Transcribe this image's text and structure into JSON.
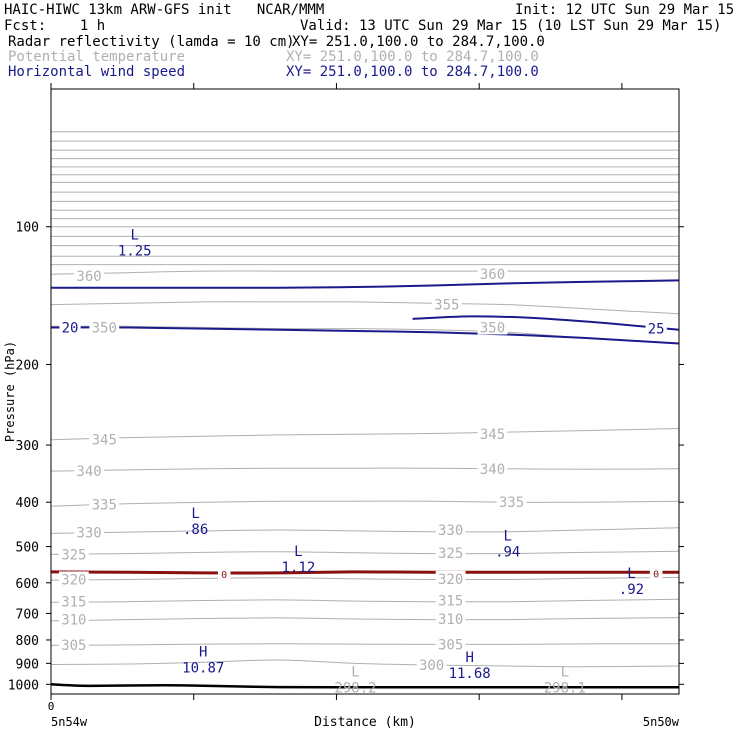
{
  "header": {
    "model": "HAIC-HIWC 13km ARW-GFS init   NCAR/MMM",
    "init": "Init: 12 UTC Sun 29 Mar 15",
    "fcst": "Fcst:    1 h",
    "valid": "Valid: 13 UTC Sun 29 Mar 15 (10 LST Sun 29 Mar 15)",
    "fields": [
      {
        "label": "Radar reflectivity (lamda = 10 cm)",
        "xy": "XY= 251.0,100.0 to 284.7,100.0",
        "color": "#000000"
      },
      {
        "label": "Potential temperature",
        "xy": "XY= 251.0,100.0 to 284.7,100.0",
        "color": "#b0b0b0"
      },
      {
        "label": "Horizontal wind speed",
        "xy": "XY= 251.0,100.0 to 284.7,100.0",
        "color": "#1a1a8c"
      }
    ]
  },
  "chart_data": {
    "type": "line",
    "xlabel": "Distance (km)",
    "ylabel": "Pressure (hPa)",
    "xlim": [
      0,
      330
    ],
    "ylim": [
      1050,
      50
    ],
    "yscale": "log",
    "x_tick_values": [
      0,
      75,
      150,
      225,
      300
    ],
    "x_tick_labels": [
      "0"
    ],
    "x_end_labels": {
      "left": "5n54w",
      "right": "5n50w"
    },
    "y_ticks": [
      100,
      200,
      300,
      400,
      500,
      600,
      700,
      800,
      900,
      1000
    ],
    "grid": false,
    "colors": {
      "theta": "#b0b0b0",
      "wind": "#1a1a8c",
      "reflectivity": "#8b1010",
      "terrain": "#000000"
    },
    "theta_series": [
      {
        "level": 300,
        "x": [
          0,
          40,
          80,
          120,
          160,
          200,
          240,
          280,
          330
        ],
        "y": [
          905,
          903,
          895,
          885,
          900,
          908,
          912,
          915,
          912
        ]
      },
      {
        "level": 305,
        "x": [
          0,
          40,
          80,
          120,
          160,
          200,
          240,
          280,
          330
        ],
        "y": [
          822,
          820,
          817,
          815,
          817,
          818,
          818,
          816,
          815
        ]
      },
      {
        "level": 310,
        "x": [
          0,
          40,
          80,
          120,
          160,
          200,
          240,
          280,
          330
        ],
        "y": [
          727,
          722,
          718,
          716,
          720,
          722,
          722,
          718,
          715
        ]
      },
      {
        "level": 315,
        "x": [
          0,
          40,
          80,
          120,
          160,
          200,
          240,
          280,
          330
        ],
        "y": [
          662,
          660,
          656,
          654,
          658,
          660,
          660,
          656,
          652
        ]
      },
      {
        "level": 320,
        "x": [
          0,
          40,
          80,
          120,
          160,
          200,
          240,
          280,
          330
        ],
        "y": [
          592,
          590,
          587,
          585,
          588,
          590,
          590,
          587,
          584
        ]
      },
      {
        "level": 325,
        "x": [
          0,
          40,
          80,
          120,
          160,
          200,
          240,
          280,
          330
        ],
        "y": [
          520,
          518,
          515,
          513,
          516,
          518,
          518,
          515,
          512
        ]
      },
      {
        "level": 330,
        "x": [
          0,
          40,
          80,
          120,
          160,
          200,
          240,
          280,
          330
        ],
        "y": [
          468,
          465,
          462,
          460,
          462,
          464,
          464,
          460,
          455
        ]
      },
      {
        "level": 335,
        "x": [
          0,
          40,
          80,
          120,
          160,
          200,
          240,
          280,
          330
        ],
        "y": [
          408,
          403,
          400,
          398,
          398,
          398,
          400,
          400,
          398
        ]
      },
      {
        "level": 340,
        "x": [
          0,
          40,
          80,
          120,
          160,
          200,
          240,
          280,
          330
        ],
        "y": [
          342,
          340,
          338,
          337,
          337,
          337,
          338,
          339,
          338
        ]
      },
      {
        "level": 345,
        "x": [
          0,
          40,
          80,
          120,
          160,
          200,
          240,
          280,
          330
        ],
        "y": [
          292,
          289,
          287,
          285,
          284,
          283,
          281,
          279,
          276
        ]
      },
      {
        "level": 350,
        "x": [
          0,
          40,
          80,
          120,
          160,
          200,
          240,
          280,
          330
        ],
        "y": [
          165,
          165,
          166,
          167,
          167,
          168,
          170,
          175,
          180
        ]
      },
      {
        "level": 355,
        "x": [
          0,
          40,
          80,
          120,
          160,
          200,
          240,
          280,
          330
        ],
        "y": [
          148,
          147,
          146,
          146,
          146,
          147,
          148,
          151,
          155
        ]
      },
      {
        "level": 360,
        "x": [
          0,
          40,
          80,
          120,
          160,
          200,
          240,
          280,
          330
        ],
        "y": [
          127,
          126,
          125,
          125,
          125,
          125,
          125,
          125,
          125
        ]
      }
    ],
    "stratosphere_theta_levels": [
      62,
      65,
      68,
      71,
      74,
      77,
      80,
      84,
      88,
      92,
      96,
      100,
      105,
      110,
      116,
      121
    ],
    "theta_labels": [
      {
        "text": "360",
        "x": 20,
        "y": 128
      },
      {
        "text": "360",
        "x": 232,
        "y": 127
      },
      {
        "text": "355",
        "x": 208,
        "y": 148
      },
      {
        "text": "350",
        "x": 28,
        "y": 166
      },
      {
        "text": "350",
        "x": 232,
        "y": 166
      },
      {
        "text": "345",
        "x": 28,
        "y": 292
      },
      {
        "text": "345",
        "x": 232,
        "y": 284
      },
      {
        "text": "340",
        "x": 20,
        "y": 342
      },
      {
        "text": "340",
        "x": 232,
        "y": 338
      },
      {
        "text": "335",
        "x": 28,
        "y": 405
      },
      {
        "text": "335",
        "x": 242,
        "y": 400
      },
      {
        "text": "330",
        "x": 20,
        "y": 466
      },
      {
        "text": "330",
        "x": 210,
        "y": 460
      },
      {
        "text": "325",
        "x": 12,
        "y": 520
      },
      {
        "text": "325",
        "x": 210,
        "y": 516
      },
      {
        "text": "320",
        "x": 12,
        "y": 590
      },
      {
        "text": "320",
        "x": 210,
        "y": 588
      },
      {
        "text": "315",
        "x": 12,
        "y": 660
      },
      {
        "text": "315",
        "x": 210,
        "y": 656
      },
      {
        "text": "310",
        "x": 12,
        "y": 722
      },
      {
        "text": "310",
        "x": 210,
        "y": 720
      },
      {
        "text": "305",
        "x": 12,
        "y": 820
      },
      {
        "text": "305",
        "x": 210,
        "y": 818
      },
      {
        "text": "300",
        "x": 200,
        "y": 908
      }
    ],
    "wind_series": [
      {
        "level": 20,
        "x": [
          0,
          40,
          80,
          120,
          160,
          200,
          240,
          280,
          330
        ],
        "y": [
          166,
          166,
          167,
          168,
          169,
          170,
          172,
          175,
          180
        ]
      },
      {
        "level": 25,
        "x": [
          190,
          220,
          250,
          280,
          310,
          330
        ],
        "y": [
          159,
          157,
          158,
          161,
          165,
          168
        ]
      },
      {
        "level": 20,
        "x": [
          0,
          60,
          120,
          180,
          240,
          280,
          330
        ],
        "y": [
          136,
          136,
          136,
          135,
          133,
          132,
          131
        ]
      }
    ],
    "wind_labels": [
      {
        "text": "20",
        "x": 10,
        "y": 166
      },
      {
        "text": "25",
        "x": 318,
        "y": 167
      }
    ],
    "reflectivity_series": [
      {
        "level": 0,
        "x": [
          0,
          40,
          80,
          120,
          160,
          200,
          240,
          280,
          330
        ],
        "y": [
          568,
          569,
          571,
          571,
          568,
          569,
          569,
          569,
          569
        ]
      }
    ],
    "reflectivity_labels": [
      {
        "text": "0",
        "x": 91,
        "y": 571
      },
      {
        "text": "0",
        "x": 318,
        "y": 569
      }
    ],
    "terrain": {
      "x": [
        0,
        10,
        20,
        40,
        60,
        80,
        100,
        120,
        150,
        200,
        250,
        300,
        330
      ],
      "y": [
        1000,
        1005,
        1008,
        1006,
        1005,
        1007,
        1011,
        1014,
        1015,
        1015,
        1015,
        1015,
        1015
      ]
    },
    "extrema": [
      {
        "mark": "L",
        "value": "1.25",
        "x": 44,
        "y": 112,
        "color": "#1a1a8c"
      },
      {
        "mark": "L",
        "value": ".86",
        "x": 76,
        "y": 455,
        "color": "#1a1a8c"
      },
      {
        "mark": "L",
        "value": "1.12",
        "x": 130,
        "y": 552,
        "color": "#1a1a8c"
      },
      {
        "mark": "L",
        "value": ".94",
        "x": 240,
        "y": 510,
        "color": "#1a1a8c"
      },
      {
        "mark": "L",
        "value": ".92",
        "x": 305,
        "y": 616,
        "color": "#1a1a8c"
      },
      {
        "mark": "H",
        "value": "10.87",
        "x": 80,
        "y": 915,
        "color": "#1a1a8c"
      },
      {
        "mark": "H",
        "value": "11.68",
        "x": 220,
        "y": 940,
        "color": "#1a1a8c"
      },
      {
        "mark": "L",
        "value": "298.2",
        "x": 160,
        "y": 1010,
        "color": "#b0b0b0"
      },
      {
        "mark": "L",
        "value": "298.1",
        "x": 270,
        "y": 1010,
        "color": "#b0b0b0"
      }
    ]
  }
}
